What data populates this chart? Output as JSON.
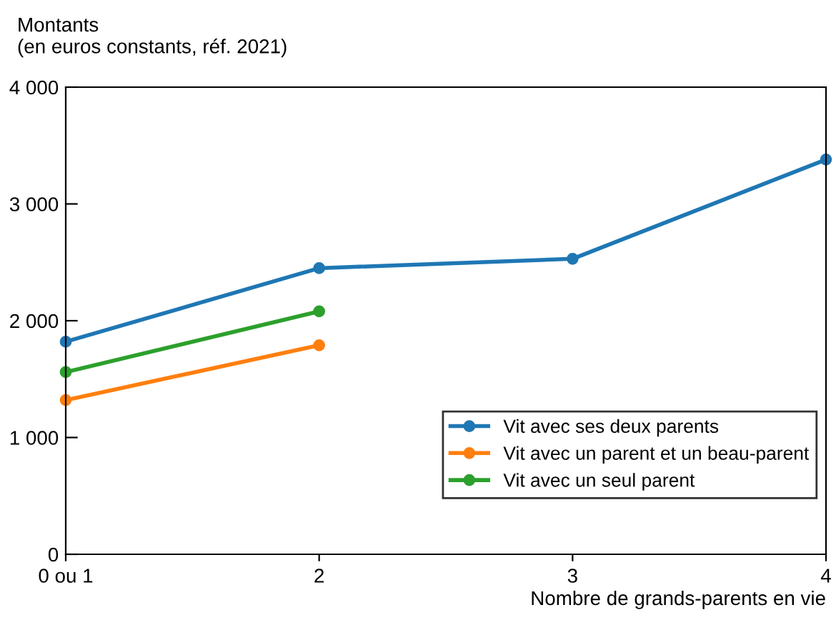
{
  "chart_data": {
    "type": "line",
    "ylabel": "Montants\n(en euros constants, réf. 2021)",
    "xlabel": "Nombre de grands-parents en vie",
    "categories": [
      "0 ou 1",
      "2",
      "3",
      "4"
    ],
    "series": [
      {
        "name": "Vit avec ses deux parents",
        "color": "#1f77b4",
        "values": [
          1820,
          2450,
          2530,
          3380
        ]
      },
      {
        "name": "Vit avec un parent et un beau-parent",
        "color": "#ff7f0e",
        "values": [
          1320,
          1790,
          null,
          null
        ]
      },
      {
        "name": "Vit avec un seul parent",
        "color": "#2ca02c",
        "values": [
          1560,
          2080,
          null,
          null
        ]
      }
    ],
    "ylim": [
      0,
      4000
    ],
    "yticks": [
      {
        "value": 0,
        "label": "0"
      },
      {
        "value": 1000,
        "label": "1 000"
      },
      {
        "value": 2000,
        "label": "2 000"
      },
      {
        "value": 3000,
        "label": "3 000"
      },
      {
        "value": 4000,
        "label": "4 000"
      }
    ],
    "grid": false,
    "legend": "bottom right",
    "marker": "circle",
    "line_style": "solid"
  }
}
